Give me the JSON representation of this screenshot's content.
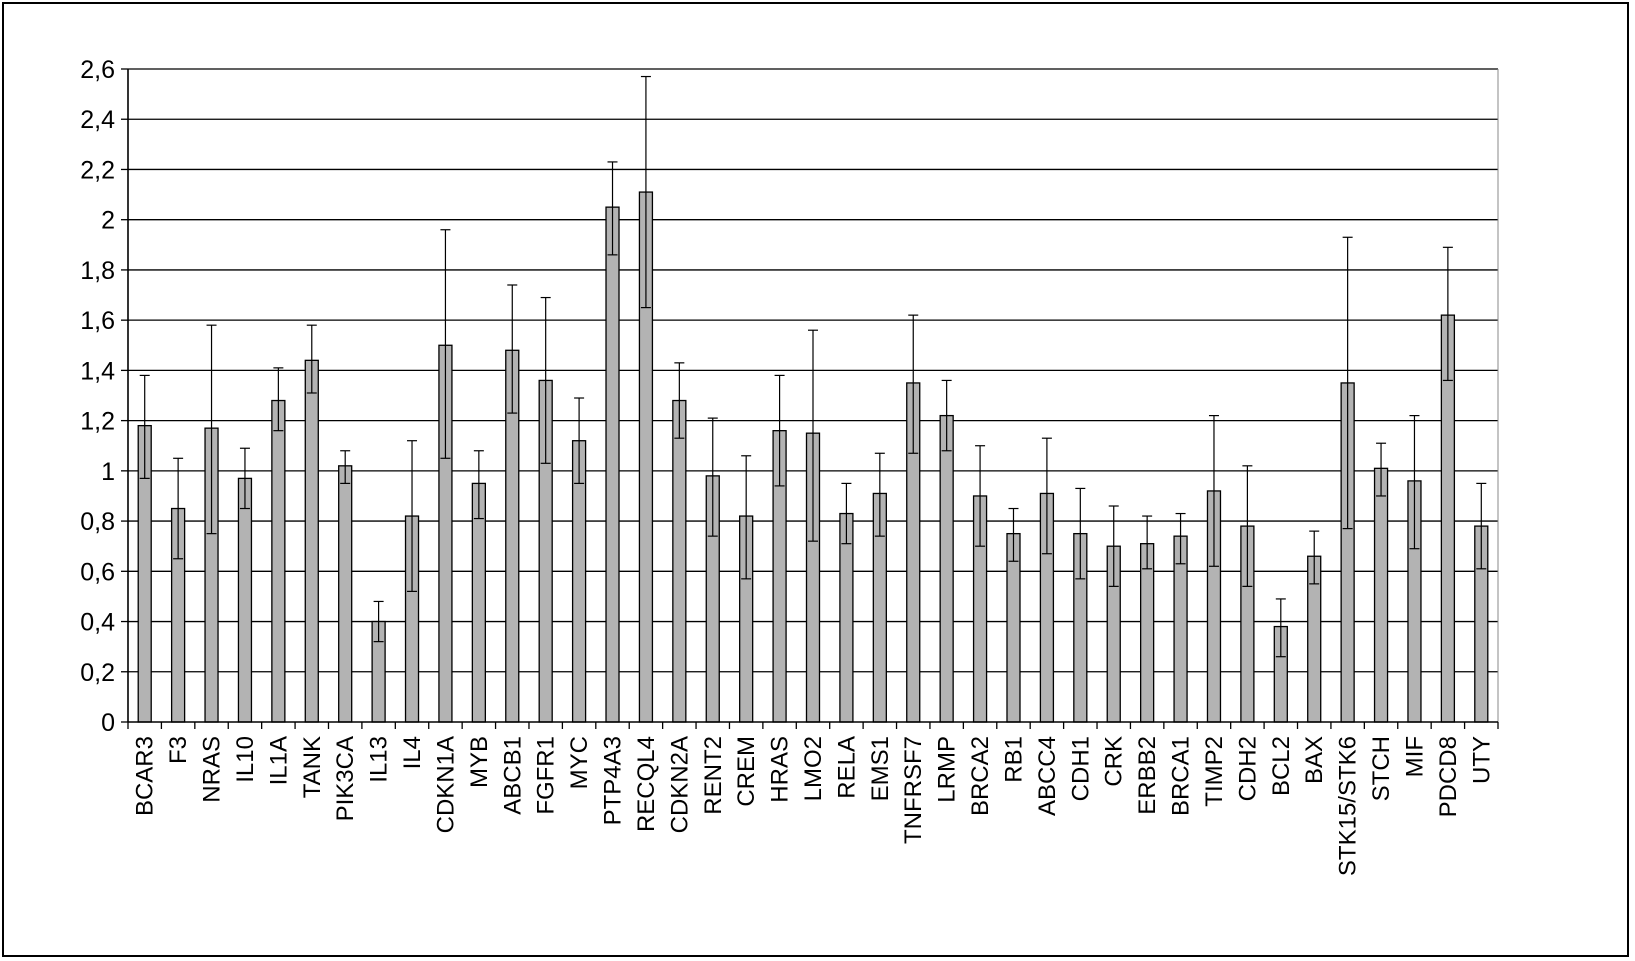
{
  "chart_data": {
    "type": "bar",
    "title": "",
    "xlabel": "",
    "ylabel": "",
    "ylim": [
      0,
      2.6
    ],
    "y_ticks": [
      "0",
      "0,2",
      "0,4",
      "0,6",
      "0,8",
      "1",
      "1,2",
      "1,4",
      "1,6",
      "1,8",
      "2",
      "2,2",
      "2,4",
      "2,6"
    ],
    "grid": "horizontal",
    "error_bars": true,
    "colors": {
      "bar_fill": "#b3b3b3",
      "bar_stroke": "#000000",
      "grid": "#000000"
    },
    "categories": [
      "BCAR3",
      "F3",
      "NRAS",
      "IL10",
      "IL1A",
      "TANK",
      "PIK3CA",
      "IL13",
      "IL4",
      "CDKN1A",
      "MYB",
      "ABCB1",
      "FGFR1",
      "MYC",
      "PTP4A3",
      "RECQL4",
      "CDKN2A",
      "RENT2",
      "CREM",
      "HRAS",
      "LMO2",
      "RELA",
      "EMS1",
      "TNFRSF7",
      "LRMP",
      "BRCA2",
      "RB1",
      "ABCC4",
      "CDH1",
      "CRK",
      "ERBB2",
      "BRCA1",
      "TIMP2",
      "CDH2",
      "BCL2",
      "BAX",
      "STK15/STK6",
      "STCH",
      "MIF",
      "PDCD8",
      "UTY"
    ],
    "values": [
      1.18,
      0.85,
      1.17,
      0.97,
      1.28,
      1.44,
      1.02,
      0.4,
      0.82,
      1.5,
      0.95,
      1.48,
      1.36,
      1.12,
      2.05,
      2.11,
      1.28,
      0.98,
      0.82,
      1.16,
      1.15,
      0.83,
      0.91,
      1.35,
      1.22,
      0.9,
      0.75,
      0.91,
      0.75,
      0.7,
      0.71,
      0.74,
      0.92,
      0.78,
      0.38,
      0.66,
      1.35,
      1.01,
      0.96,
      1.62,
      0.78
    ],
    "error_low": [
      0.97,
      0.65,
      0.75,
      0.85,
      1.16,
      1.31,
      0.95,
      0.32,
      0.52,
      1.05,
      0.81,
      1.23,
      1.03,
      0.95,
      1.86,
      1.65,
      1.13,
      0.74,
      0.57,
      0.94,
      0.72,
      0.71,
      0.74,
      1.07,
      1.08,
      0.7,
      0.64,
      0.67,
      0.57,
      0.54,
      0.61,
      0.63,
      0.62,
      0.54,
      0.26,
      0.55,
      0.77,
      0.9,
      0.69,
      1.36,
      0.61
    ],
    "error_high": [
      1.38,
      1.05,
      1.58,
      1.09,
      1.41,
      1.58,
      1.08,
      0.48,
      1.12,
      1.96,
      1.08,
      1.74,
      1.69,
      1.29,
      2.23,
      2.57,
      1.43,
      1.21,
      1.06,
      1.38,
      1.56,
      0.95,
      1.07,
      1.62,
      1.36,
      1.1,
      0.85,
      1.13,
      0.93,
      0.86,
      0.82,
      0.83,
      1.22,
      1.02,
      0.49,
      0.76,
      1.93,
      1.11,
      1.22,
      1.89,
      0.95
    ]
  }
}
